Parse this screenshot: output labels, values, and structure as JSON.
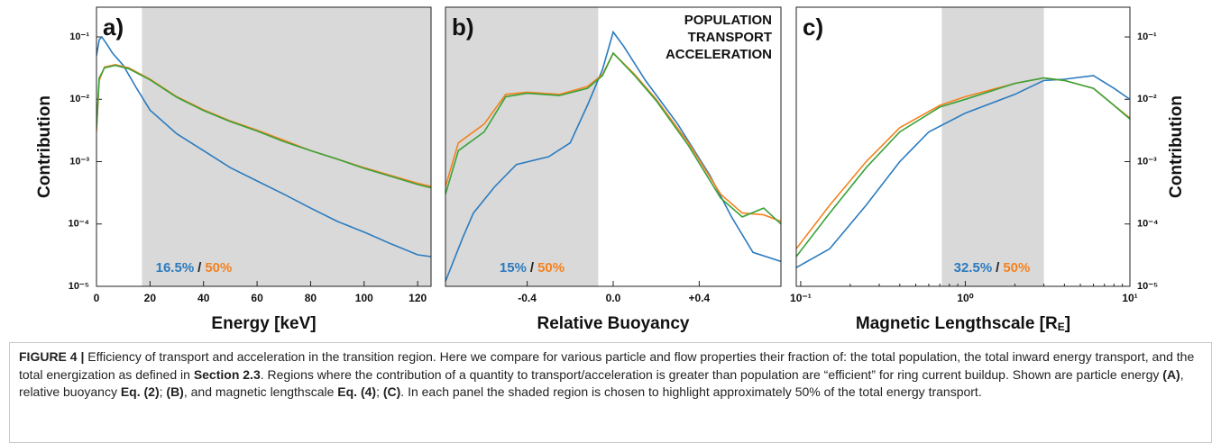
{
  "chart_data": [
    {
      "type": "line",
      "panel_label": "a)",
      "x_label": "Energy [keV]",
      "y_label": "Contribution",
      "ytick_side": "left",
      "xlim": [
        0,
        125
      ],
      "xticks": [
        0,
        20,
        40,
        60,
        80,
        100,
        120
      ],
      "yscale": "log",
      "ylim": [
        1e-05,
        0.3
      ],
      "yticks": [
        {
          "value": 0.1,
          "label": "10⁻¹"
        },
        {
          "value": 0.01,
          "label": "10⁻²"
        },
        {
          "value": 0.001,
          "label": "10⁻³"
        },
        {
          "value": 0.0001,
          "label": "10⁻⁴"
        },
        {
          "value": 1e-05,
          "label": "10⁻⁵"
        }
      ],
      "shaded_region": [
        17,
        125
      ],
      "shade_color": "#d9d9d9",
      "annotation": {
        "population": "16.5%",
        "separator": "/",
        "transport": "50%"
      },
      "series": [
        {
          "color": "#2b7bbf",
          "x": [
            0,
            1,
            2,
            4,
            6,
            10,
            15,
            20,
            30,
            40,
            50,
            60,
            70,
            80,
            90,
            100,
            110,
            120,
            125
          ],
          "values": [
            0.05,
            0.09,
            0.1,
            0.075,
            0.055,
            0.035,
            0.015,
            0.0067,
            0.0028,
            0.0015,
            0.0008,
            0.00049,
            0.0003,
            0.00018,
            0.00011,
            7.4e-05,
            4.8e-05,
            3.2e-05,
            3e-05
          ]
        },
        {
          "color": "#f5821f",
          "x": [
            0,
            1,
            3,
            7,
            12,
            20,
            30,
            40,
            50,
            60,
            70,
            80,
            90,
            100,
            110,
            120,
            125
          ],
          "values": [
            0.003,
            0.02,
            0.033,
            0.036,
            0.032,
            0.021,
            0.011,
            0.0068,
            0.0045,
            0.0032,
            0.0022,
            0.0015,
            0.0011,
            0.0008,
            0.0006,
            0.00045,
            0.0004
          ]
        },
        {
          "color": "#3aa23a",
          "x": [
            0,
            1,
            3,
            7,
            12,
            20,
            30,
            40,
            50,
            60,
            70,
            80,
            90,
            100,
            110,
            120,
            125
          ],
          "values": [
            0.0035,
            0.022,
            0.032,
            0.035,
            0.031,
            0.0205,
            0.0108,
            0.0066,
            0.0044,
            0.0031,
            0.0021,
            0.0015,
            0.0011,
            0.00078,
            0.00058,
            0.00043,
            0.00038
          ]
        }
      ]
    },
    {
      "type": "line",
      "panel_label": "b)",
      "x_label": "Relative Buoyancy",
      "legend": "upper right",
      "xlim": [
        -0.78,
        0.78
      ],
      "xticks": [
        -0.4,
        {
          "value": 0,
          "label": "0.0"
        },
        {
          "value": 0.4,
          "label": "+0.4"
        }
      ],
      "yscale": "log",
      "ylim": [
        1e-05,
        0.3
      ],
      "shaded_region": [
        -0.78,
        -0.07
      ],
      "shade_color": "#d9d9d9",
      "annotation": {
        "population": "15%",
        "separator": "/",
        "transport": "50%"
      },
      "series": [
        {
          "name": "POPULATION",
          "color": "#2b7bbf",
          "x": [
            -0.78,
            -0.7,
            -0.65,
            -0.55,
            -0.45,
            -0.3,
            -0.2,
            -0.12,
            -0.05,
            0,
            0.05,
            0.15,
            0.3,
            0.45,
            0.55,
            0.65,
            0.78
          ],
          "values": [
            1.2e-05,
            6e-05,
            0.00015,
            0.0004,
            0.0009,
            0.0012,
            0.002,
            0.008,
            0.03,
            0.12,
            0.07,
            0.02,
            0.004,
            0.0006,
            0.00013,
            3.5e-05,
            2.5e-05
          ]
        },
        {
          "name": "TRANSPORT",
          "color": "#f5821f",
          "x": [
            -0.78,
            -0.72,
            -0.6,
            -0.5,
            -0.4,
            -0.25,
            -0.12,
            -0.05,
            0,
            0.1,
            0.2,
            0.35,
            0.5,
            0.6,
            0.7,
            0.78
          ],
          "values": [
            0.0004,
            0.002,
            0.004,
            0.012,
            0.013,
            0.012,
            0.016,
            0.025,
            0.055,
            0.025,
            0.01,
            0.002,
            0.0003,
            0.00015,
            0.00014,
            0.00011
          ]
        },
        {
          "name": "ACCELERATION",
          "color": "#3aa23a",
          "x": [
            -0.78,
            -0.72,
            -0.6,
            -0.5,
            -0.4,
            -0.25,
            -0.12,
            -0.05,
            0,
            0.1,
            0.2,
            0.35,
            0.5,
            0.6,
            0.7,
            0.78
          ],
          "values": [
            0.0003,
            0.0015,
            0.003,
            0.011,
            0.0125,
            0.0115,
            0.015,
            0.024,
            0.055,
            0.024,
            0.0095,
            0.0018,
            0.00026,
            0.00013,
            0.00018,
            0.0001
          ]
        }
      ]
    },
    {
      "type": "line",
      "panel_label": "c)",
      "x_label_parts": [
        "Magnetic Lengthscale [R",
        "E",
        "]"
      ],
      "y_label": "Contribution",
      "ytick_side": "right",
      "xscale": "log",
      "xlim": [
        0.094,
        10
      ],
      "xticks": [
        {
          "value": 0.1,
          "label": "10⁻¹"
        },
        {
          "value": 1,
          "label": "10⁰"
        },
        {
          "value": 10,
          "label": "10¹"
        }
      ],
      "yscale": "log",
      "ylim": [
        1e-05,
        0.3
      ],
      "yticks": [
        {
          "value": 0.1,
          "label": "10⁻¹"
        },
        {
          "value": 0.01,
          "label": "10⁻²"
        },
        {
          "value": 0.001,
          "label": "10⁻³"
        },
        {
          "value": 0.0001,
          "label": "10⁻⁴"
        },
        {
          "value": 1e-05,
          "label": "10⁻⁵"
        }
      ],
      "shaded_region": [
        0.72,
        3
      ],
      "shade_color": "#d9d9d9",
      "annotation": {
        "population": "32.5%",
        "separator": "/",
        "transport": "50%"
      },
      "series": [
        {
          "color": "#2b7bbf",
          "x": [
            0.094,
            0.15,
            0.25,
            0.4,
            0.6,
            1,
            2,
            3,
            4,
            6,
            8,
            10
          ],
          "values": [
            2e-05,
            4e-05,
            0.0002,
            0.001,
            0.003,
            0.006,
            0.012,
            0.02,
            0.021,
            0.024,
            0.015,
            0.01
          ]
        },
        {
          "color": "#f5821f",
          "x": [
            0.094,
            0.15,
            0.25,
            0.4,
            0.7,
            1,
            2,
            3,
            4,
            6,
            8,
            10
          ],
          "values": [
            4e-05,
            0.0002,
            0.001,
            0.0035,
            0.008,
            0.011,
            0.018,
            0.022,
            0.02,
            0.015,
            0.008,
            0.005
          ]
        },
        {
          "color": "#3aa23a",
          "x": [
            0.094,
            0.15,
            0.25,
            0.4,
            0.7,
            1,
            2,
            3,
            4,
            6,
            8,
            10
          ],
          "values": [
            3e-05,
            0.00015,
            0.0008,
            0.003,
            0.0075,
            0.01,
            0.018,
            0.022,
            0.02,
            0.015,
            0.008,
            0.0048
          ]
        }
      ]
    }
  ],
  "caption": {
    "segments": [
      {
        "text": "FIGURE 4 |",
        "bold": true
      },
      {
        "text": " Efficiency of transport and acceleration in the transition region. Here we compare for various particle and flow properties their fraction of: the total population, the total inward energy transport, and the total energization as defined in ",
        "bold": false
      },
      {
        "text": "Section 2.3",
        "bold": true
      },
      {
        "text": ". Regions where the contribution of a quantity to transport/acceleration is greater than population are “efficient” for ring current buildup. Shown are particle energy ",
        "bold": false
      },
      {
        "text": "(A)",
        "bold": true
      },
      {
        "text": ", relative buoyancy ",
        "bold": false
      },
      {
        "text": "Eq. (2)",
        "bold": true
      },
      {
        "text": "; ",
        "bold": false
      },
      {
        "text": "(B)",
        "bold": true
      },
      {
        "text": ", and magnetic lengthscale ",
        "bold": false
      },
      {
        "text": "Eq. (4)",
        "bold": true
      },
      {
        "text": "; ",
        "bold": false
      },
      {
        "text": "(C)",
        "bold": true
      },
      {
        "text": ". In each panel the shaded region is chosen to highlight approximately 50% of the total energy transport.",
        "bold": false
      }
    ]
  }
}
